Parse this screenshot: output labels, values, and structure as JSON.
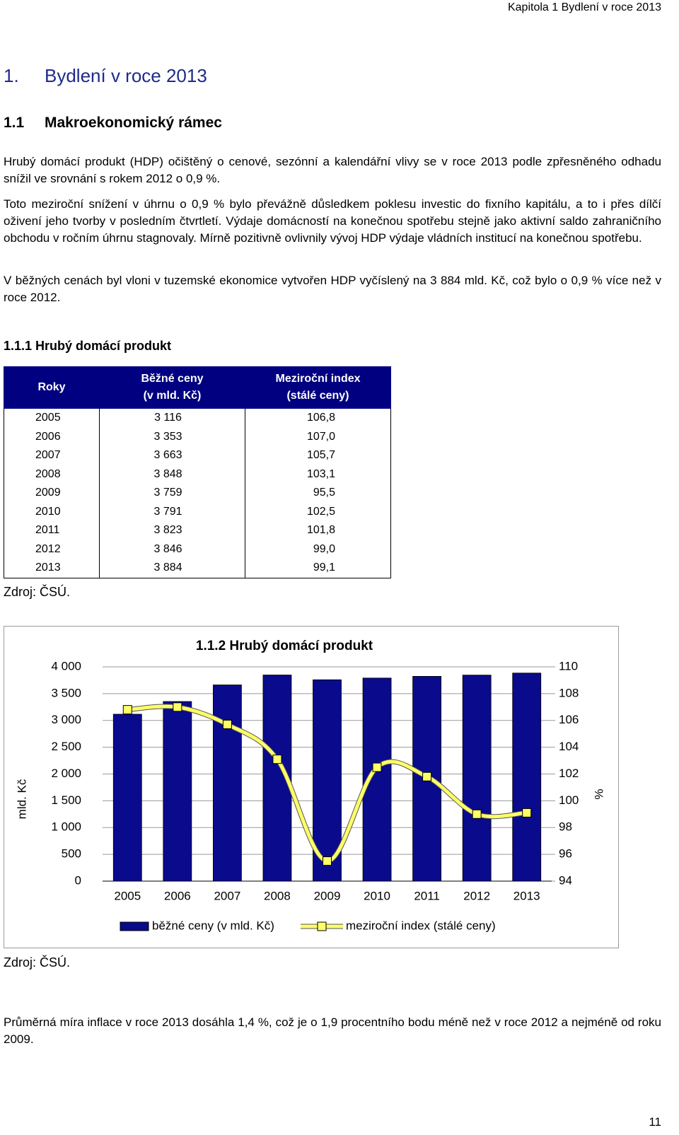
{
  "header": "Kapitola 1 Bydlení v roce 2013",
  "heading1": {
    "number": "1.",
    "title": "Bydlení v roce 2013"
  },
  "heading2": {
    "number": "1.1",
    "title": "Makroekonomický rámec"
  },
  "paragraphs": [
    "Hrubý domácí produkt (HDP) očištěný o cenové, sezónní a kalendářní vlivy se v roce 2013 podle zpřesněného odhadu snížil ve srovnání s rokem 2012 o 0,9 %.",
    "Toto meziroční snížení v úhrnu o 0,9 % bylo převážně důsledkem poklesu investic do fixního kapitálu, a to i přes dílčí oživení jeho tvorby v posledním čtvrtletí. Výdaje domácností na konečnou spotřebu stejně jako aktivní saldo zahraničního obchodu v ročním úhrnu stagnovaly. Mírně pozitivně ovlivnily vývoj HDP výdaje vládních institucí na konečnou spotřebu.",
    "V běžných cenách byl vloni v tuzemské ekonomice vytvořen HDP vyčíslený na 3 884 mld. Kč, což bylo o 0,9 % více než v roce 2012."
  ],
  "table": {
    "title": "1.1.1 Hrubý domácí produkt",
    "columns": [
      [
        "Roky"
      ],
      [
        "Běžné ceny",
        "(v mld. Kč)"
      ],
      [
        "Meziroční index",
        "(stálé ceny)"
      ]
    ],
    "rows": [
      [
        "2005",
        "3 116",
        "106,8"
      ],
      [
        "2006",
        "3 353",
        "107,0"
      ],
      [
        "2007",
        "3 663",
        "105,7"
      ],
      [
        "2008",
        "3 848",
        "103,1"
      ],
      [
        "2009",
        "3 759",
        "95,5"
      ],
      [
        "2010",
        "3 791",
        "102,5"
      ],
      [
        "2011",
        "3 823",
        "101,8"
      ],
      [
        "2012",
        "3 846",
        "99,0"
      ],
      [
        "2013",
        "3 884",
        "99,1"
      ]
    ],
    "source": "Zdroj: ČSÚ."
  },
  "chart_data": {
    "type": "bar",
    "title": "1.1.2 Hrubý domácí produkt",
    "categories": [
      "2005",
      "2006",
      "2007",
      "2008",
      "2009",
      "2010",
      "2011",
      "2012",
      "2013"
    ],
    "series": [
      {
        "name": "běžné ceny (v mld. Kč)",
        "color": "#0a0a8c",
        "values": [
          3116,
          3353,
          3663,
          3848,
          3759,
          3791,
          3823,
          3846,
          3884
        ]
      },
      {
        "name": "meziroční index (stálé ceny)",
        "color": "#ffff66",
        "type": "line",
        "axis": "y2",
        "values": [
          106.8,
          107.0,
          105.7,
          103.1,
          95.5,
          102.5,
          101.8,
          99.0,
          99.1
        ]
      }
    ],
    "ylabel": "mld. Kč",
    "y2label": "%",
    "ylim": [
      0,
      4000
    ],
    "yticks": [
      0,
      500,
      {
        "value": 1000,
        "label": "1 000"
      },
      {
        "value": 1500,
        "label": "1 500"
      },
      {
        "value": 2000,
        "label": "2 000"
      },
      {
        "value": 2500,
        "label": "2 500"
      },
      {
        "value": 3000,
        "label": "3 000"
      },
      {
        "value": 3500,
        "label": "3 500"
      },
      {
        "value": 4000,
        "label": "4 000"
      }
    ],
    "y2lim": [
      94,
      110
    ],
    "y2ticks": [
      94,
      96,
      98,
      100,
      102,
      104,
      106,
      108,
      110
    ],
    "grid": true,
    "legend": "bottom"
  },
  "chart_source": "Zdroj: ČSÚ.",
  "closing_paragraph": "Průměrná míra inflace v roce 2013 dosáhla 1,4 %, což je o 1,9 procentního bodu méně než v roce 2012 a nejméně od roku 2009.",
  "page_number": "11"
}
